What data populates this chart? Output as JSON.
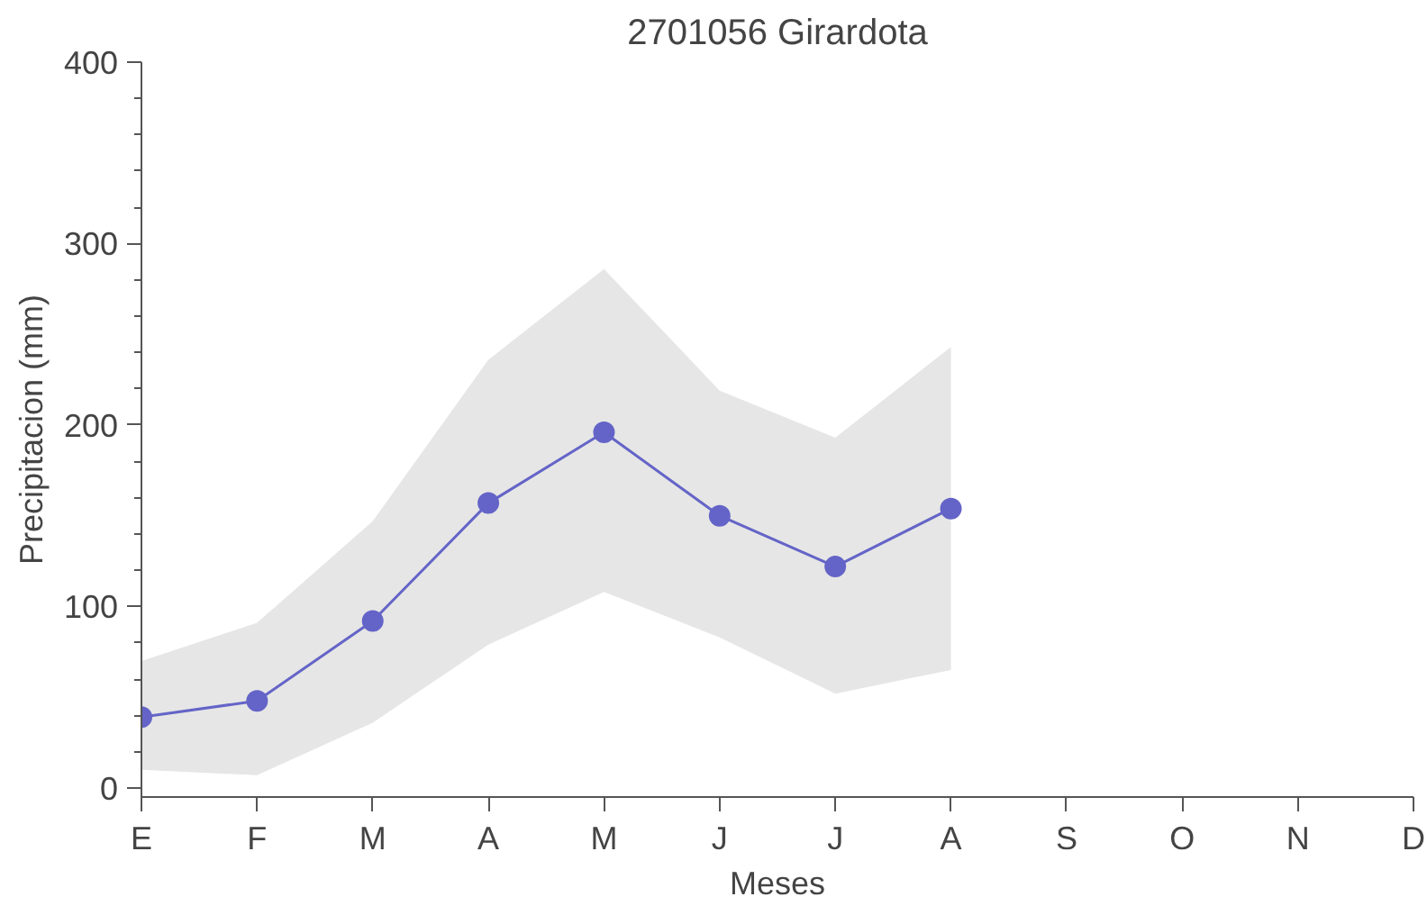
{
  "chart_data": {
    "type": "line",
    "title": "2701056 Girardota",
    "xlabel": "Meses",
    "ylabel": "Precipitacion (mm)",
    "categories": [
      "E",
      "F",
      "M",
      "A",
      "M",
      "J",
      "J",
      "A",
      "S",
      "O",
      "N",
      "D"
    ],
    "series": [
      {
        "color": "#6464c8",
        "values": [
          39,
          48,
          92,
          157,
          196,
          150,
          122,
          154,
          null,
          null,
          null,
          null
        ],
        "lower": [
          10,
          7,
          36,
          79,
          108,
          83,
          52,
          65,
          null,
          null,
          null,
          null
        ],
        "upper": [
          70,
          91,
          147,
          236,
          286,
          219,
          193,
          243,
          null,
          null,
          null,
          null
        ]
      }
    ],
    "ylim": [
      -5,
      400
    ],
    "yticks": [
      0,
      100,
      200,
      300,
      400
    ],
    "marker": "circle",
    "line_style": "solid"
  }
}
